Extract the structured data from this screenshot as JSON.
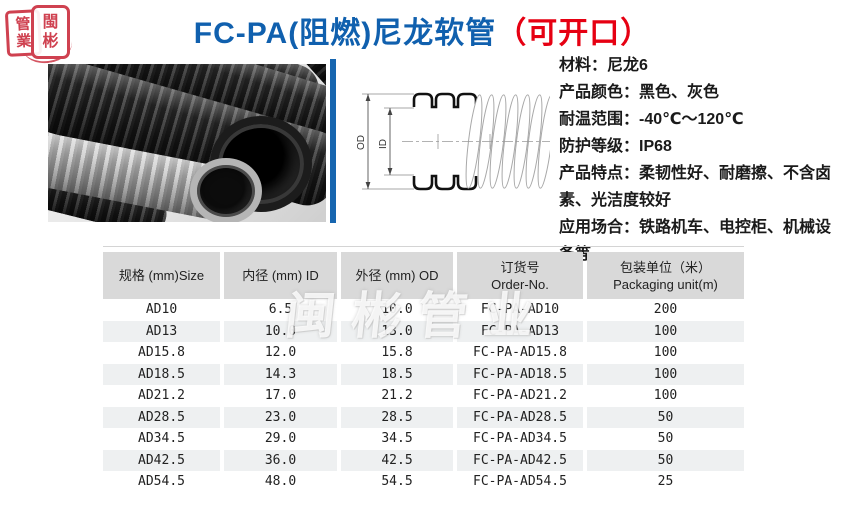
{
  "colors": {
    "title_blue": "#1060ae",
    "title_red": "#e60012",
    "stamp_red": "#cf4150",
    "divider_blue": "#1766b0",
    "table_header_bg": "#d9d9d9",
    "table_alt_row_bg": "#eef0f1"
  },
  "logo": {
    "left_chars": [
      "管",
      "業"
    ],
    "right_chars": [
      "閩",
      "彬"
    ]
  },
  "header": {
    "title_main": "FC-PA(阻燃)尼龙软管",
    "title_suffix": "（可开口）"
  },
  "diagram": {
    "od_label": "OD",
    "id_label": "ID"
  },
  "specs": {
    "lines": [
      "材料：尼龙6",
      "产品颜色：黑色、灰色",
      "耐温范围：-40℃～120℃",
      "防护等级：IP68",
      "产品特点：柔韧性好、耐磨擦、不含卤素、光洁度较好",
      "应用场合：铁路机车、电控柜、机械设备等"
    ]
  },
  "watermark": "闽彬管业",
  "table": {
    "headers": [
      [
        "规格 (mm)Size"
      ],
      [
        "内径 (mm) ID"
      ],
      [
        "外径 (mm) OD"
      ],
      [
        "订货号",
        "Order-No."
      ],
      [
        "包装单位（米）",
        "Packaging unit(m)"
      ]
    ],
    "rows": [
      [
        "AD10",
        "6.5",
        "10.0",
        "FC-PA-AD10",
        "200"
      ],
      [
        "AD13",
        "10.0",
        "13.0",
        "FC-PA-AD13",
        "100"
      ],
      [
        "AD15.8",
        "12.0",
        "15.8",
        "FC-PA-AD15.8",
        "100"
      ],
      [
        "AD18.5",
        "14.3",
        "18.5",
        "FC-PA-AD18.5",
        "100"
      ],
      [
        "AD21.2",
        "17.0",
        "21.2",
        "FC-PA-AD21.2",
        "100"
      ],
      [
        "AD28.5",
        "23.0",
        "28.5",
        "FC-PA-AD28.5",
        "50"
      ],
      [
        "AD34.5",
        "29.0",
        "34.5",
        "FC-PA-AD34.5",
        "50"
      ],
      [
        "AD42.5",
        "36.0",
        "42.5",
        "FC-PA-AD42.5",
        "50"
      ],
      [
        "AD54.5",
        "48.0",
        "54.5",
        "FC-PA-AD54.5",
        "25"
      ]
    ]
  }
}
